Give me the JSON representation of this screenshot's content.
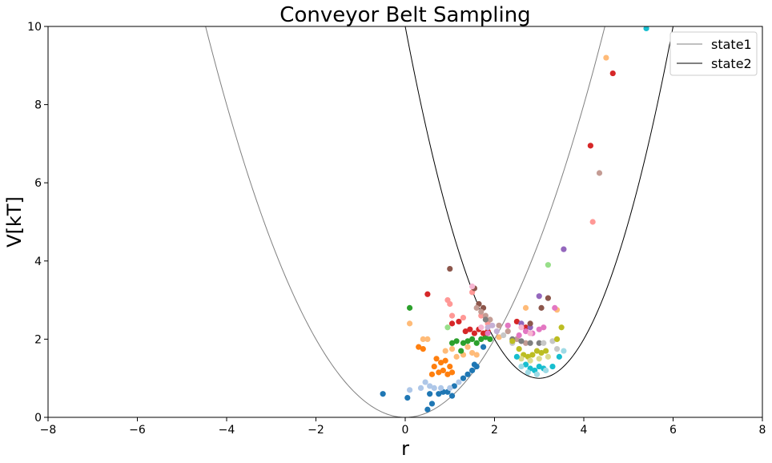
{
  "chart_data": {
    "type": "line+scatter",
    "title": "Conveyor Belt Sampling",
    "xlabel": "r",
    "ylabel": "V[kT]",
    "xlim": [
      -8,
      8
    ],
    "ylim": [
      0,
      10
    ],
    "xticks": [
      -8,
      -6,
      -4,
      -2,
      0,
      2,
      4,
      6,
      8
    ],
    "yticks": [
      0,
      2,
      4,
      6,
      8,
      10
    ],
    "xtick_labels": [
      "−8",
      "−6",
      "−4",
      "−2",
      "0",
      "2",
      "4",
      "6",
      "8"
    ],
    "ytick_labels": [
      "0",
      "2",
      "4",
      "6",
      "8",
      "10"
    ],
    "legend_position": "top-right",
    "grid": false,
    "curves": [
      {
        "name": "state1",
        "color": "#808080",
        "type": "harmonic",
        "center": 0,
        "offset": 0,
        "k": 0.5
      },
      {
        "name": "state2",
        "color": "#000000",
        "type": "harmonic",
        "center": 3,
        "offset": 1,
        "k": 1.0
      }
    ],
    "scatter_series": [
      {
        "color": "#1f77b4",
        "points": [
          [
            -0.5,
            0.6
          ],
          [
            0.05,
            0.5
          ],
          [
            0.5,
            0.2
          ],
          [
            0.6,
            0.35
          ],
          [
            0.55,
            0.6
          ],
          [
            0.75,
            0.6
          ],
          [
            0.85,
            0.65
          ],
          [
            0.95,
            0.65
          ],
          [
            1.05,
            0.55
          ],
          [
            1.1,
            0.8
          ],
          [
            1.3,
            1.0
          ],
          [
            1.4,
            1.1
          ],
          [
            1.5,
            1.2
          ],
          [
            1.55,
            1.35
          ],
          [
            1.6,
            1.3
          ],
          [
            1.75,
            1.8
          ]
        ]
      },
      {
        "color": "#aec7e8",
        "points": [
          [
            0.1,
            0.7
          ],
          [
            0.35,
            0.75
          ],
          [
            0.45,
            0.9
          ],
          [
            0.55,
            0.8
          ],
          [
            0.65,
            0.75
          ],
          [
            0.8,
            0.75
          ],
          [
            1.0,
            0.75
          ],
          [
            1.2,
            0.9
          ]
        ]
      },
      {
        "color": "#ff7f0e",
        "points": [
          [
            0.3,
            1.8
          ],
          [
            0.4,
            1.75
          ],
          [
            0.6,
            1.1
          ],
          [
            0.65,
            1.3
          ],
          [
            0.7,
            1.5
          ],
          [
            0.75,
            1.15
          ],
          [
            0.8,
            1.4
          ],
          [
            0.85,
            1.2
          ],
          [
            0.9,
            1.45
          ],
          [
            0.95,
            1.1
          ],
          [
            1.0,
            1.3
          ],
          [
            1.05,
            1.15
          ]
        ]
      },
      {
        "color": "#ffbb78",
        "points": [
          [
            0.1,
            2.4
          ],
          [
            0.4,
            2.0
          ],
          [
            0.5,
            2.0
          ],
          [
            0.9,
            1.7
          ],
          [
            1.05,
            1.75
          ],
          [
            1.15,
            1.55
          ],
          [
            1.3,
            1.6
          ],
          [
            1.4,
            1.8
          ],
          [
            1.5,
            1.65
          ],
          [
            1.6,
            1.6
          ],
          [
            2.1,
            2.05
          ],
          [
            2.7,
            2.8
          ],
          [
            3.4,
            2.75
          ],
          [
            4.5,
            9.2
          ]
        ]
      },
      {
        "color": "#2ca02c",
        "points": [
          [
            0.1,
            2.8
          ],
          [
            1.05,
            1.9
          ],
          [
            1.15,
            1.95
          ],
          [
            1.25,
            1.7
          ],
          [
            1.3,
            1.9
          ],
          [
            1.4,
            1.95
          ],
          [
            1.5,
            2.0
          ],
          [
            1.6,
            1.9
          ],
          [
            1.7,
            2.0
          ],
          [
            1.8,
            2.05
          ],
          [
            1.9,
            2.0
          ]
        ]
      },
      {
        "color": "#98df8a",
        "points": [
          [
            0.95,
            2.3
          ],
          [
            3.2,
            3.9
          ]
        ]
      },
      {
        "color": "#d62728",
        "points": [
          [
            0.5,
            3.15
          ],
          [
            1.05,
            2.4
          ],
          [
            1.2,
            2.45
          ],
          [
            1.35,
            2.2
          ],
          [
            1.45,
            2.25
          ],
          [
            1.55,
            2.15
          ],
          [
            1.65,
            2.25
          ],
          [
            1.75,
            2.15
          ],
          [
            1.85,
            2.2
          ],
          [
            2.5,
            2.45
          ],
          [
            2.7,
            2.3
          ],
          [
            4.15,
            6.95
          ],
          [
            4.65,
            8.8
          ]
        ]
      },
      {
        "color": "#ff9896",
        "points": [
          [
            0.95,
            3.0
          ],
          [
            1.0,
            2.9
          ],
          [
            1.05,
            2.6
          ],
          [
            1.3,
            2.55
          ],
          [
            1.5,
            3.2
          ],
          [
            1.7,
            2.6
          ],
          [
            1.85,
            2.4
          ],
          [
            4.2,
            5.0
          ]
        ]
      },
      {
        "color": "#9467bd",
        "points": [
          [
            2.6,
            2.4
          ],
          [
            2.8,
            2.3
          ],
          [
            3.0,
            3.1
          ],
          [
            3.55,
            4.3
          ]
        ]
      },
      {
        "color": "#c5b0d5",
        "points": [
          [
            1.85,
            2.3
          ],
          [
            1.95,
            2.35
          ],
          [
            2.05,
            2.2
          ]
        ]
      },
      {
        "color": "#8c564b",
        "points": [
          [
            1.0,
            3.8
          ],
          [
            1.55,
            3.3
          ],
          [
            1.65,
            2.9
          ],
          [
            1.75,
            2.8
          ],
          [
            2.8,
            2.4
          ],
          [
            3.05,
            2.8
          ],
          [
            3.2,
            3.05
          ]
        ]
      },
      {
        "color": "#c49c94",
        "points": [
          [
            1.6,
            2.8
          ],
          [
            1.7,
            2.7
          ],
          [
            1.8,
            2.6
          ],
          [
            1.9,
            2.5
          ],
          [
            2.1,
            2.35
          ],
          [
            2.3,
            2.2
          ],
          [
            2.5,
            2.0
          ],
          [
            2.7,
            1.9
          ],
          [
            4.35,
            6.25
          ]
        ]
      },
      {
        "color": "#e377c2",
        "points": [
          [
            1.85,
            2.15
          ],
          [
            2.3,
            2.35
          ],
          [
            2.55,
            2.1
          ],
          [
            2.7,
            2.2
          ],
          [
            2.85,
            2.15
          ],
          [
            3.0,
            2.25
          ],
          [
            3.1,
            2.3
          ],
          [
            3.35,
            2.8
          ]
        ]
      },
      {
        "color": "#f7b6d2",
        "points": [
          [
            1.5,
            3.35
          ],
          [
            1.7,
            2.3
          ],
          [
            2.6,
            2.3
          ],
          [
            2.8,
            2.15
          ]
        ]
      },
      {
        "color": "#7f7f7f",
        "points": [
          [
            1.8,
            2.5
          ],
          [
            2.4,
            2.0
          ],
          [
            2.6,
            1.95
          ],
          [
            2.8,
            1.9
          ],
          [
            3.0,
            1.9
          ]
        ]
      },
      {
        "color": "#c7c7c7",
        "points": [
          [
            2.2,
            2.1
          ],
          [
            2.4,
            1.9
          ],
          [
            3.1,
            1.9
          ],
          [
            3.3,
            1.95
          ],
          [
            3.4,
            1.75
          ]
        ]
      },
      {
        "color": "#bcbd22",
        "points": [
          [
            2.4,
            1.95
          ],
          [
            2.55,
            1.75
          ],
          [
            2.65,
            1.6
          ],
          [
            2.75,
            1.55
          ],
          [
            2.85,
            1.6
          ],
          [
            2.95,
            1.7
          ],
          [
            3.05,
            1.65
          ],
          [
            3.15,
            1.7
          ],
          [
            3.4,
            2.0
          ],
          [
            3.5,
            2.3
          ]
        ]
      },
      {
        "color": "#dbdb8d",
        "points": [
          [
            2.6,
            1.5
          ],
          [
            2.8,
            1.45
          ],
          [
            3.0,
            1.5
          ],
          [
            3.2,
            1.55
          ]
        ]
      },
      {
        "color": "#17becf",
        "points": [
          [
            2.5,
            1.55
          ],
          [
            2.7,
            1.35
          ],
          [
            2.8,
            1.25
          ],
          [
            2.9,
            1.2
          ],
          [
            3.0,
            1.3
          ],
          [
            3.1,
            1.25
          ],
          [
            3.3,
            1.3
          ],
          [
            3.45,
            1.55
          ],
          [
            5.4,
            9.95
          ]
        ]
      },
      {
        "color": "#9edae5",
        "points": [
          [
            2.6,
            1.3
          ],
          [
            2.75,
            1.15
          ],
          [
            2.95,
            1.1
          ],
          [
            3.15,
            1.2
          ],
          [
            3.55,
            1.7
          ]
        ]
      }
    ]
  }
}
